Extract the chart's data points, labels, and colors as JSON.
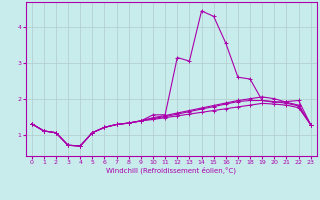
{
  "xlabel": "Windchill (Refroidissement éolien,°C)",
  "background_color": "#c8ecec",
  "grid_color": "#b0cccc",
  "line_color": "#aa00aa",
  "xlim": [
    -0.5,
    23.5
  ],
  "ylim": [
    0.4,
    4.7
  ],
  "yticks": [
    1,
    2,
    3,
    4
  ],
  "xticks": [
    0,
    1,
    2,
    3,
    4,
    5,
    6,
    7,
    8,
    9,
    10,
    11,
    12,
    13,
    14,
    15,
    16,
    17,
    18,
    19,
    20,
    21,
    22,
    23
  ],
  "series_spike_x": [
    0,
    1,
    2,
    3,
    4,
    5,
    6,
    7,
    8,
    9,
    10,
    11,
    12,
    13,
    14,
    15,
    16,
    17,
    18,
    19,
    20,
    21,
    22,
    23
  ],
  "series_spike_y": [
    1.3,
    1.1,
    1.05,
    0.7,
    0.68,
    1.05,
    1.2,
    1.28,
    1.32,
    1.38,
    1.55,
    1.55,
    3.15,
    3.05,
    4.45,
    4.3,
    3.55,
    2.6,
    2.55,
    1.95,
    1.9,
    1.92,
    1.95,
    1.27
  ],
  "series_flat1_x": [
    0,
    1,
    2,
    3,
    4,
    5,
    6,
    7,
    8,
    9,
    10,
    11,
    12,
    13,
    14,
    15,
    16,
    17,
    18,
    19,
    20,
    21,
    22,
    23
  ],
  "series_flat1_y": [
    1.3,
    1.1,
    1.05,
    0.7,
    0.68,
    1.05,
    1.2,
    1.28,
    1.32,
    1.38,
    1.42,
    1.47,
    1.52,
    1.57,
    1.62,
    1.67,
    1.72,
    1.77,
    1.82,
    1.87,
    1.85,
    1.82,
    1.75,
    1.27
  ],
  "series_flat2_x": [
    0,
    1,
    2,
    3,
    4,
    5,
    6,
    7,
    8,
    9,
    10,
    11,
    12,
    13,
    14,
    15,
    16,
    17,
    18,
    19,
    20,
    21,
    22,
    23
  ],
  "series_flat2_y": [
    1.3,
    1.1,
    1.05,
    0.7,
    0.68,
    1.05,
    1.2,
    1.28,
    1.32,
    1.38,
    1.45,
    1.5,
    1.57,
    1.64,
    1.71,
    1.78,
    1.85,
    1.92,
    1.95,
    1.95,
    1.92,
    1.87,
    1.8,
    1.27
  ],
  "series_flat3_x": [
    0,
    1,
    2,
    3,
    4,
    5,
    6,
    7,
    8,
    9,
    10,
    11,
    12,
    13,
    14,
    15,
    16,
    17,
    18,
    19,
    20,
    21,
    22,
    23
  ],
  "series_flat3_y": [
    1.3,
    1.1,
    1.05,
    0.7,
    0.68,
    1.05,
    1.2,
    1.28,
    1.32,
    1.38,
    1.47,
    1.53,
    1.6,
    1.67,
    1.74,
    1.81,
    1.88,
    1.95,
    2.0,
    2.05,
    2.0,
    1.9,
    1.82,
    1.27
  ]
}
